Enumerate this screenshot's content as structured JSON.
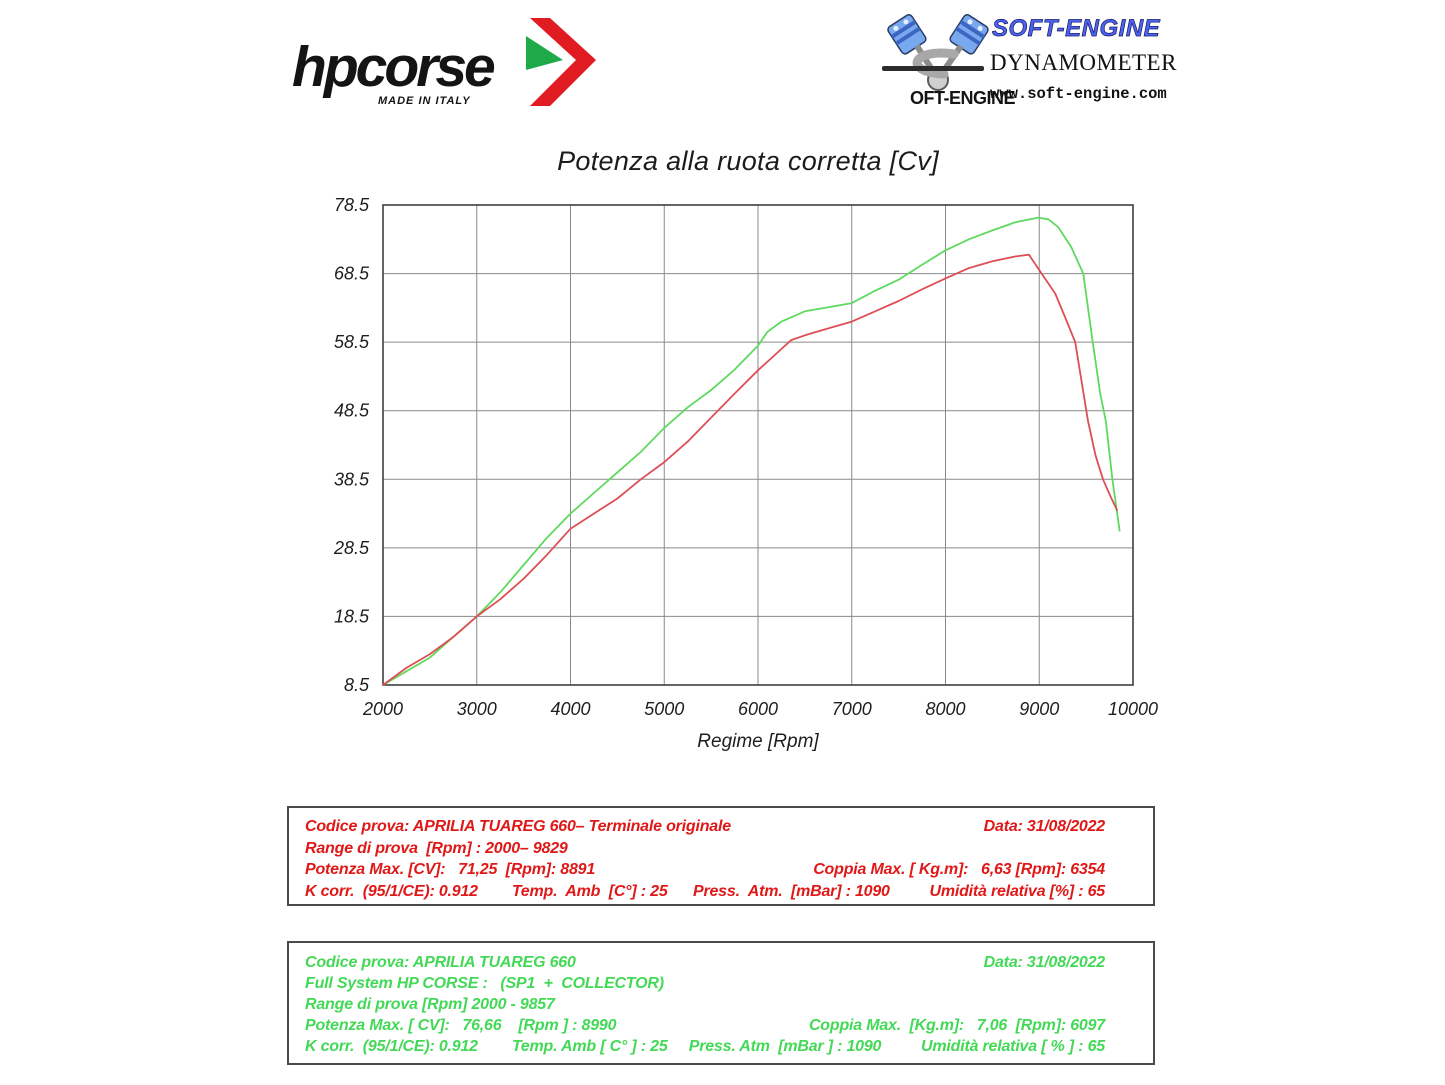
{
  "branding": {
    "hpcorse": {
      "wordmark": "hpcorse",
      "tagline": "MADE IN ITALY",
      "arrow_red": "#e11b22",
      "arrow_green": "#1faa4a"
    },
    "softengine": {
      "logo_s": "S",
      "logo_text": "OFT-ENGINE",
      "brand": "SOFT-ENGINE",
      "subtitle": "DYNAMOMETERS",
      "website": "www.soft-engine.com",
      "brand_color": "#4a63f0"
    }
  },
  "chart_data": {
    "type": "line",
    "title": "Potenza alla ruota corretta [Cv]",
    "xlabel": "Regime [Rpm]",
    "ylabel": "",
    "xlim": [
      2000,
      10000
    ],
    "ylim": [
      8.5,
      78.5
    ],
    "x_ticks": [
      2000,
      3000,
      4000,
      5000,
      6000,
      7000,
      8000,
      9000,
      10000
    ],
    "y_ticks": [
      8.5,
      18.5,
      28.5,
      38.5,
      48.5,
      58.5,
      68.5,
      78.5
    ],
    "grid": true,
    "legend_position": "none",
    "grid_color": "#8a8a8a",
    "border_color": "#3f3f3f",
    "tick_color": "#1e1e1e",
    "series": [
      {
        "name": "APRILIA TUAREG 660 - Full System HP CORSE (SP1 + COLLECTOR)",
        "color": "#5fd95f",
        "max_power_cv": 76.66,
        "max_power_rpm": 8990,
        "x": [
          2000,
          2250,
          2500,
          2750,
          3000,
          3250,
          3500,
          3750,
          4000,
          4250,
          4500,
          4750,
          5000,
          5250,
          5500,
          5750,
          6000,
          6100,
          6250,
          6500,
          6750,
          7000,
          7250,
          7500,
          7750,
          8000,
          8250,
          8500,
          8750,
          8990,
          9100,
          9200,
          9340,
          9470,
          9570,
          9650,
          9710,
          9780,
          9857
        ],
        "values": [
          8.5,
          10.5,
          12.5,
          15.5,
          18.5,
          22,
          26,
          30,
          33.5,
          36.5,
          39.5,
          42.5,
          46,
          49,
          51.5,
          54.5,
          58,
          60,
          61.5,
          63,
          63.6,
          64.2,
          66,
          67.6,
          69.8,
          71.9,
          73.5,
          74.8,
          76,
          76.66,
          76.4,
          75.3,
          72.4,
          68.5,
          58.5,
          51,
          47,
          38.5,
          31
        ]
      },
      {
        "name": "APRILIA TUAREG 660 - Terminale originale",
        "color": "#dd4f55",
        "max_power_cv": 71.25,
        "max_power_rpm": 8891,
        "x": [
          2000,
          2250,
          2500,
          2750,
          3000,
          3250,
          3500,
          3750,
          4000,
          4250,
          4500,
          4750,
          5000,
          5250,
          5500,
          5750,
          6000,
          6250,
          6354,
          6500,
          6750,
          7000,
          7250,
          7500,
          7750,
          8000,
          8250,
          8500,
          8750,
          8891,
          9000,
          9170,
          9280,
          9383,
          9520,
          9600,
          9680,
          9760,
          9829
        ],
        "values": [
          8.5,
          11,
          13,
          15.5,
          18.5,
          21,
          24,
          27.5,
          31.3,
          33.5,
          35.7,
          38.5,
          41,
          44,
          47.5,
          51,
          54.4,
          57.5,
          58.8,
          59.5,
          60.5,
          61.5,
          63,
          64.5,
          66.2,
          67.8,
          69.3,
          70.3,
          71,
          71.25,
          69,
          65.6,
          62,
          58.5,
          47,
          42,
          38.5,
          36,
          34
        ]
      }
    ]
  },
  "red_box": {
    "row1_left": "Codice prova: APRILIA TUAREG 660– Terminale originale",
    "row1_right": "Data: 31/08/2022",
    "row2_left": "Range di prova  [Rpm] : 2000– 9829",
    "row3_left": "Potenza Max. [CV]:   71,25  [Rpm]: 8891",
    "row3_right": "Coppia Max. [ Kg.m]:   6,63 [Rpm]: 6354",
    "row4_left": "K corr.  (95/1/CE): 0.912        Temp.  Amb  [C°] : 25      Press.  Atm.  [mBar] : 1090",
    "row4_right": "Umidità relativa [%] : 65"
  },
  "green_box": {
    "row1_left": "Codice prova: APRILIA TUAREG 660",
    "row1_right": "Data: 31/08/2022",
    "row2_left": "Full System HP CORSE :   (SP1  +  COLLECTOR)",
    "row3_left": "Range di prova [Rpm] 2000 - 9857",
    "row4_left": "Potenza Max. [ CV]:   76,66    [Rpm ] : 8990",
    "row4_right": "Coppia Max.  [Kg.m]:   7,06  [Rpm]: 6097",
    "row5_left": "K corr.  (95/1/CE): 0.912        Temp. Amb [ C° ] : 25     Press. Atm  [mBar ] : 1090",
    "row5_right": "Umidità relativa [ % ] : 65"
  }
}
